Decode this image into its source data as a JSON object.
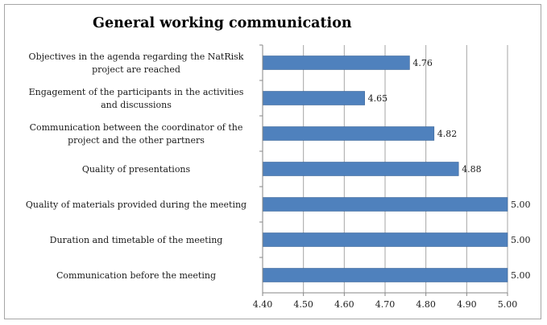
{
  "chart_data": {
    "type": "bar",
    "orientation": "horizontal",
    "title": "General working communication",
    "categories": [
      "Objectives in the agenda regarding the NatRisk project are reached",
      "Engagement of the participants in the activities and discussions",
      "Communication between the coordinator of the project and the other partners",
      "Quality of presentations",
      "Quality of materials provided during the meeting",
      "Duration and timetable of the meeting",
      "Communication before the meeting"
    ],
    "category_lines": [
      [
        "Objectives in the agenda regarding the NatRisk",
        "project are reached"
      ],
      [
        "Engagement of the participants in the activities",
        "and discussions"
      ],
      [
        "Communication between the coordinator of the",
        "project and the other partners"
      ],
      [
        "Quality of presentations"
      ],
      [
        "Quality of materials provided during the meeting"
      ],
      [
        "Duration and timetable of the meeting"
      ],
      [
        "Communication before the meeting"
      ]
    ],
    "values": [
      4.76,
      4.65,
      4.82,
      4.88,
      5.0,
      5.0,
      5.0
    ],
    "data_labels": [
      "4.76",
      "4.65",
      "4.82",
      "4.88",
      "5.00",
      "5.00",
      "5.00"
    ],
    "xlim": [
      4.4,
      5.0
    ],
    "xticks": [
      4.4,
      4.5,
      4.6,
      4.7,
      4.8,
      4.9,
      5.0
    ],
    "xtick_labels": [
      "4.40",
      "4.50",
      "4.60",
      "4.70",
      "4.80",
      "4.90",
      "5.00"
    ],
    "xlabel": "",
    "ylabel": "",
    "grid": "vertical",
    "legend": "none",
    "colors": {
      "bar": "#4f81bd",
      "bar_edge": "#3c6698",
      "grid": "#a6a6a6",
      "axis": "#868686",
      "border": "#a6a6a6"
    }
  }
}
